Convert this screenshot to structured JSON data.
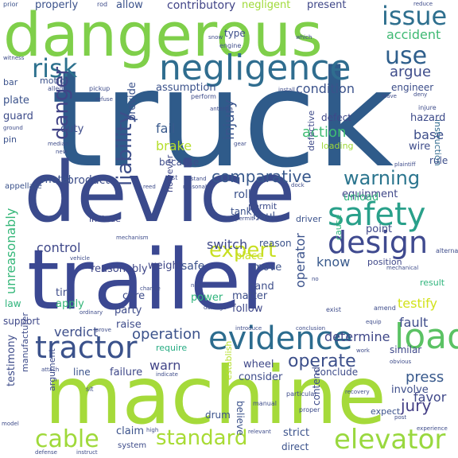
{
  "words": [
    {
      "text": "truck",
      "color": "#2f5b8a"
    },
    {
      "text": "device",
      "color": "#3a4a8c"
    },
    {
      "text": "trailer",
      "color": "#3b4892"
    },
    {
      "text": "machine",
      "color": "#a5da3a"
    },
    {
      "text": "dangerous",
      "color": "#7fcf4a"
    },
    {
      "text": "negligence",
      "color": "#2f6d8f"
    },
    {
      "text": "safety",
      "color": "#29a08a"
    },
    {
      "text": "design",
      "color": "#3f4a8f"
    },
    {
      "text": "evidence",
      "color": "#2c6c8e"
    },
    {
      "text": "tractor",
      "color": "#3b528b"
    },
    {
      "text": "load",
      "color": "#5bc264"
    },
    {
      "text": "standard",
      "color": "#a8db34"
    },
    {
      "text": "elevator",
      "color": "#99d83e"
    },
    {
      "text": "cable",
      "color": "#9fd93a"
    },
    {
      "text": "issue",
      "color": "#2e6f8e"
    },
    {
      "text": "use",
      "color": "#2f5f8c"
    },
    {
      "text": "risk",
      "color": "#2d718e"
    },
    {
      "text": "expert",
      "color": "#c8df22"
    },
    {
      "text": "liability",
      "color": "#3d4e8a"
    },
    {
      "text": "danger",
      "color": "#414487"
    },
    {
      "text": "comparative",
      "color": "#38588c"
    },
    {
      "text": "warning",
      "color": "#2b758e"
    },
    {
      "text": "operate",
      "color": "#3c4f8a"
    },
    {
      "text": "operation",
      "color": "#3b528b"
    },
    {
      "text": "jury",
      "color": "#433e85"
    },
    {
      "text": "control",
      "color": "#3f4889"
    },
    {
      "text": "unreasonably",
      "color": "#35b779"
    },
    {
      "text": "switch",
      "color": "#3e4989"
    },
    {
      "text": "verdict",
      "color": "#3d4e8a"
    },
    {
      "text": "fault",
      "color": "#3e4c8a"
    },
    {
      "text": "determine",
      "color": "#3f4788"
    },
    {
      "text": "testify",
      "color": "#d2e21b"
    },
    {
      "text": "press",
      "color": "#38598c"
    },
    {
      "text": "know",
      "color": "#38598c"
    },
    {
      "text": "action",
      "color": "#3fbc73"
    },
    {
      "text": "condition",
      "color": "#3b528b"
    },
    {
      "text": "argue",
      "color": "#3e4c8a"
    },
    {
      "text": "accident",
      "color": "#3eb973"
    },
    {
      "text": "injury",
      "color": "#3a548c"
    },
    {
      "text": "brake",
      "color": "#b5de2b"
    },
    {
      "text": "fail",
      "color": "#38598c"
    },
    {
      "text": "base",
      "color": "#3d4e8a"
    },
    {
      "text": "favor",
      "color": "#3f4889"
    },
    {
      "text": "warn",
      "color": "#414487"
    },
    {
      "text": "operator",
      "color": "#3b528b"
    },
    {
      "text": "equipment",
      "color": "#3f4788"
    },
    {
      "text": "unload",
      "color": "#2fb47c"
    },
    {
      "text": "point",
      "color": "#3f4889"
    },
    {
      "text": "instruction",
      "color": "#2f6b8e"
    },
    {
      "text": "defective",
      "color": "#3e4a89"
    },
    {
      "text": "contributory",
      "color": "#414487"
    },
    {
      "text": "properly",
      "color": "#3b528b"
    },
    {
      "text": "allow",
      "color": "#3b528b"
    },
    {
      "text": "negligent",
      "color": "#a0da39"
    },
    {
      "text": "present",
      "color": "#3f4788"
    },
    {
      "text": "motion",
      "color": "#3b528b"
    },
    {
      "text": "duty",
      "color": "#3e4c8a"
    },
    {
      "text": "plate",
      "color": "#3b528b"
    },
    {
      "text": "guard",
      "color": "#3e4c8a"
    },
    {
      "text": "provide",
      "color": "#3b528b"
    },
    {
      "text": "product",
      "color": "#3d4e8a"
    },
    {
      "text": "include",
      "color": "#3f4788"
    },
    {
      "text": "however",
      "color": "#3f4788"
    },
    {
      "text": "metal",
      "color": "#3b528b"
    },
    {
      "text": "safe",
      "color": "#3b528b"
    },
    {
      "text": "reasonably",
      "color": "#3f4788"
    },
    {
      "text": "weight",
      "color": "#3f4788"
    },
    {
      "text": "hand",
      "color": "#3d4e8a"
    },
    {
      "text": "matter",
      "color": "#3d4e8a"
    },
    {
      "text": "follow",
      "color": "#3f4889"
    },
    {
      "text": "apply",
      "color": "#35b779"
    },
    {
      "text": "tire",
      "color": "#3e4c8a"
    },
    {
      "text": "party",
      "color": "#3e4c8a"
    },
    {
      "text": "care",
      "color": "#3e4c8a"
    },
    {
      "text": "power",
      "color": "#2fb47c"
    },
    {
      "text": "raise",
      "color": "#3e4c8a"
    },
    {
      "text": "require",
      "color": "#25ab82"
    },
    {
      "text": "position",
      "color": "#3f4889"
    },
    {
      "text": "result",
      "color": "#2fb47c"
    },
    {
      "text": "wheel",
      "color": "#3f4889"
    },
    {
      "text": "consider",
      "color": "#3e4c8a"
    },
    {
      "text": "failure",
      "color": "#3f4889"
    },
    {
      "text": "line",
      "color": "#3b528b"
    },
    {
      "text": "claim",
      "color": "#3b528b"
    },
    {
      "text": "drum",
      "color": "#3b528b"
    },
    {
      "text": "establish",
      "color": "#b5de2b"
    },
    {
      "text": "believe",
      "color": "#3b528b"
    },
    {
      "text": "strict",
      "color": "#3b528b"
    },
    {
      "text": "conclude",
      "color": "#3e4c8a"
    },
    {
      "text": "involve",
      "color": "#3d4e8a"
    },
    {
      "text": "contend",
      "color": "#3e4c8a"
    },
    {
      "text": "testimony",
      "color": "#3e4c8a"
    },
    {
      "text": "argument",
      "color": "#3e4c8a"
    },
    {
      "text": "manufacturer",
      "color": "#3e4c8a"
    },
    {
      "text": "support",
      "color": "#3f4889"
    },
    {
      "text": "law",
      "color": "#2fb47c"
    },
    {
      "text": "assumption",
      "color": "#3b528b"
    },
    {
      "text": "type",
      "color": "#3d4e8a"
    },
    {
      "text": "engineer",
      "color": "#3d4e8a"
    },
    {
      "text": "hazard",
      "color": "#3e4c8a"
    },
    {
      "text": "wire",
      "color": "#3e4c8a"
    },
    {
      "text": "defect",
      "color": "#3f4889"
    },
    {
      "text": "rule",
      "color": "#3d4e8a"
    },
    {
      "text": "roll",
      "color": "#3b528b"
    },
    {
      "text": "tank",
      "color": "#3b528b"
    },
    {
      "text": "haul",
      "color": "#3b528b"
    },
    {
      "text": "permit",
      "color": "#3e4c8a"
    },
    {
      "text": "driver",
      "color": "#3b528b"
    },
    {
      "text": "place",
      "color": "#c8df22"
    },
    {
      "text": "reason",
      "color": "#3b528b"
    },
    {
      "text": "move",
      "color": "#3b528b"
    },
    {
      "text": "cause",
      "color": "#2fb47c"
    },
    {
      "text": "loading",
      "color": "#9fd93a"
    },
    {
      "text": "because",
      "color": "#3e4c8a"
    },
    {
      "text": "bar",
      "color": "#3b528b"
    },
    {
      "text": "pin",
      "color": "#3b528b"
    },
    {
      "text": "appellate",
      "color": "#3b528b"
    },
    {
      "text": "similar",
      "color": "#3f4889"
    },
    {
      "text": "expect",
      "color": "#3b528b"
    },
    {
      "text": "direct",
      "color": "#3b528b"
    },
    {
      "text": "elevator-2",
      "color": "#99d83e"
    }
  ],
  "small_words": [
    "prior",
    "rod",
    "reduce",
    "remote",
    "snow",
    "which",
    "witness",
    "engine",
    "purpose",
    "properly-2",
    "allege",
    "pickup",
    "perform",
    "install",
    "deny",
    "leave",
    "give",
    "refuse",
    "knowledge",
    "injure",
    "ground",
    "median",
    "antenna",
    "gear",
    "new",
    "engineering",
    "reed",
    "test",
    "stand",
    "reasonable",
    "dock",
    "concern",
    "permit-2",
    "open",
    "mechanism",
    "vehicle",
    "mechanical",
    "nature",
    "damage",
    "change",
    "ordinary",
    "proximate",
    "manner",
    "no",
    "exist",
    "amend",
    "conclusion",
    "work",
    "introduce",
    "prove",
    "obvious",
    "attach",
    "indicate",
    "relevant",
    "high",
    "system",
    "defense",
    "instruct",
    "mount",
    "function",
    "misuse",
    "theory",
    "err",
    "manual",
    "proper",
    "affirm",
    "particular",
    "recovery",
    "experience",
    "post",
    "equip",
    "alternative",
    "conduct",
    "shaft",
    "decide",
    "model",
    "sit",
    "plaintiff"
  ]
}
